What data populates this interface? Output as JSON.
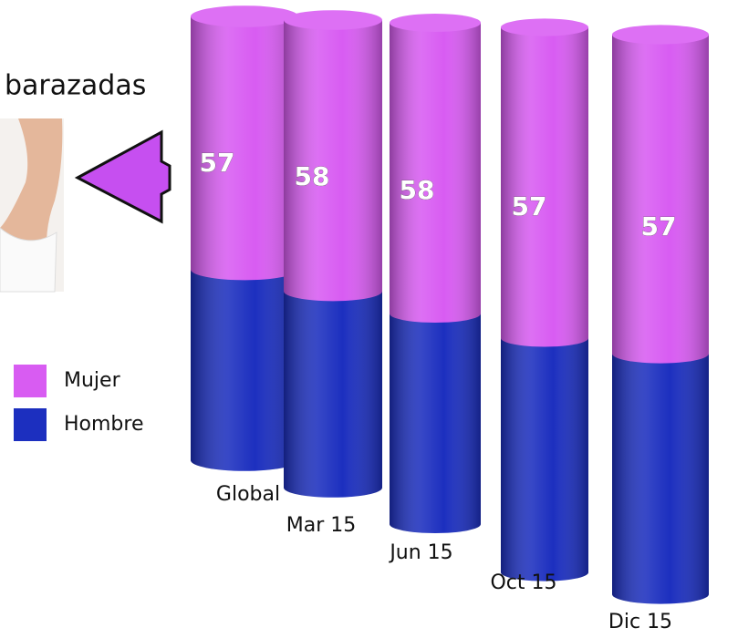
{
  "chart_data": {
    "type": "cylinder-stacked",
    "annotation": "barazadas",
    "categories": [
      "Global",
      "Mar 15",
      "Jun 15",
      "Oct 15",
      "Dic 15"
    ],
    "series": [
      {
        "name": "Mujer",
        "color": "#d85cf2",
        "values": [
          57,
          58,
          58,
          57,
          57
        ]
      },
      {
        "name": "Hombre",
        "color": "#1c2fbf",
        "values": [
          43,
          42,
          42,
          43,
          43
        ]
      }
    ],
    "value_labels_series": 0
  }
}
